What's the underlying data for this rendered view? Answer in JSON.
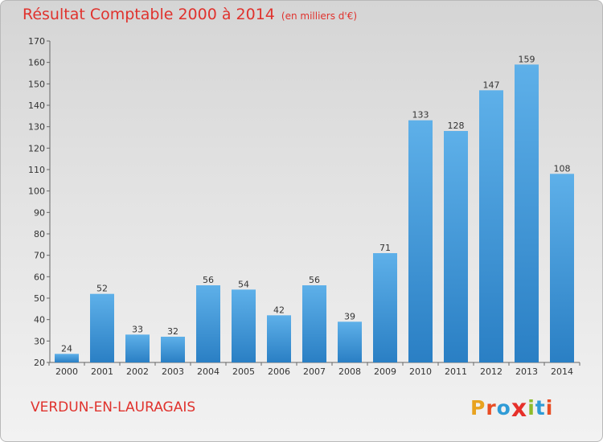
{
  "header": {
    "title": "Résultat Comptable 2000 à 2014",
    "subtitle": "(en milliers d'€)"
  },
  "footer": {
    "commune": "VERDUN-EN-LAURAGAIS",
    "logo_letters": [
      "P",
      "r",
      "o",
      "x",
      "i",
      "t",
      "i"
    ]
  },
  "colors": {
    "title": "#e0322d",
    "bar_light": "#5eb0e9",
    "bar_dark": "#2a7fc4",
    "logo": [
      "#e8a21f",
      "#e84d24",
      "#2f9bd6",
      "#e6302a",
      "#8dbb2a",
      "#2f9bd6",
      "#e84d24"
    ]
  },
  "chart_data": {
    "type": "bar",
    "title": "Résultat Comptable 2000 à 2014",
    "subtitle": "(en milliers d'€)",
    "xlabel": "",
    "ylabel": "",
    "categories": [
      "2000",
      "2001",
      "2002",
      "2003",
      "2004",
      "2005",
      "2006",
      "2007",
      "2008",
      "2009",
      "2010",
      "2011",
      "2012",
      "2013",
      "2014"
    ],
    "values": [
      24,
      52,
      33,
      32,
      56,
      54,
      42,
      56,
      39,
      71,
      133,
      128,
      147,
      159,
      108
    ],
    "ylim": [
      20,
      170
    ],
    "yticks": [
      20,
      30,
      40,
      50,
      60,
      70,
      80,
      90,
      100,
      110,
      120,
      130,
      140,
      150,
      160,
      170
    ],
    "grid": false,
    "data_labels": true
  }
}
